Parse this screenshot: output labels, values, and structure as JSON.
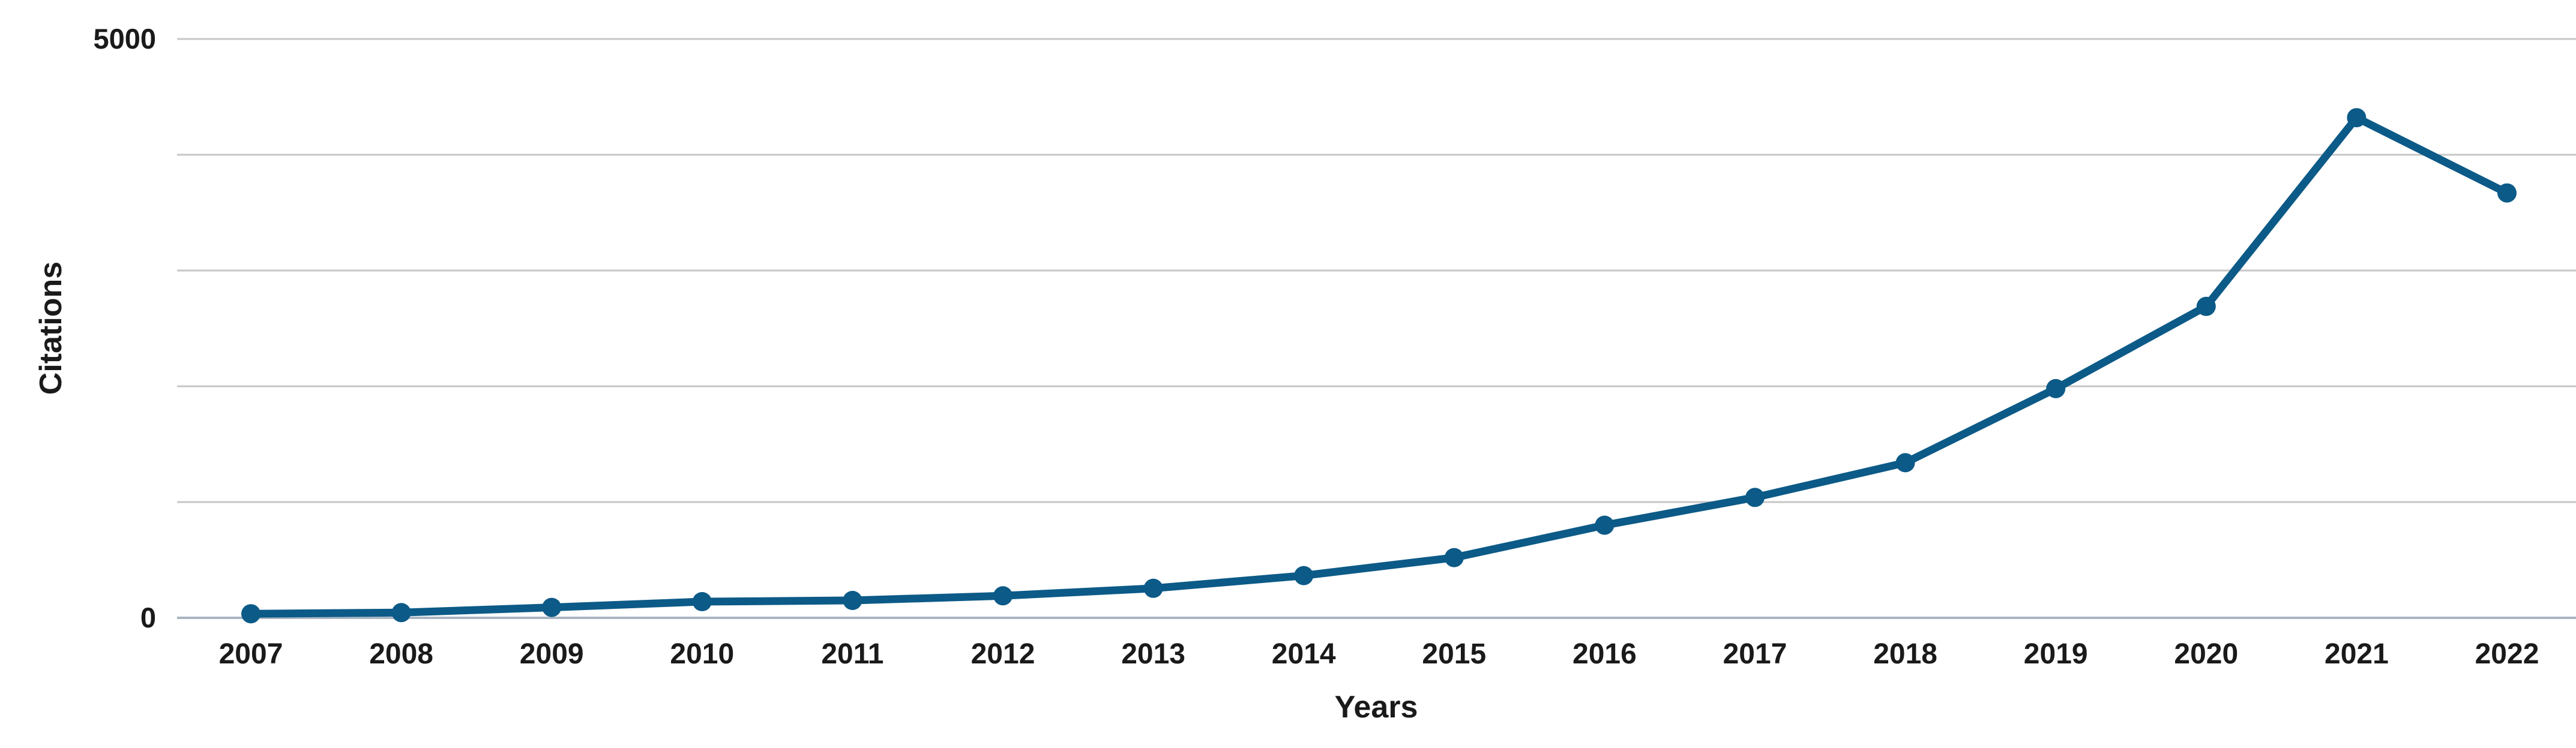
{
  "figure": {
    "background": "#ffffff"
  },
  "chart_data": {
    "type": "line",
    "title": "",
    "xlabel": "Years",
    "ylabel": "Citations",
    "categories": [
      "2007",
      "2008",
      "2009",
      "2010",
      "2011",
      "2012",
      "2013",
      "2014",
      "2015",
      "2016",
      "2017",
      "2018",
      "2019",
      "2020",
      "2021",
      "2022"
    ],
    "series": [
      {
        "name": "Citations",
        "values": [
          35,
          45,
          90,
          140,
          150,
          190,
          255,
          365,
          520,
          800,
          1040,
          1340,
          1980,
          2690,
          4320,
          3670
        ]
      }
    ],
    "ylim": [
      0,
      5000
    ],
    "y_gridline_step": 1000,
    "y_tick_labels_shown": [
      "0",
      "5000"
    ],
    "grid": "horizontal-gridlines-on",
    "legend": "none",
    "line_color": "#0c5a87",
    "marker": "filled-circle",
    "marker_color": "#0c5a87",
    "gridline_color": "#c6c6c6",
    "baseline_color": "#a9b6c2",
    "text_color": "#1a1a1a"
  }
}
